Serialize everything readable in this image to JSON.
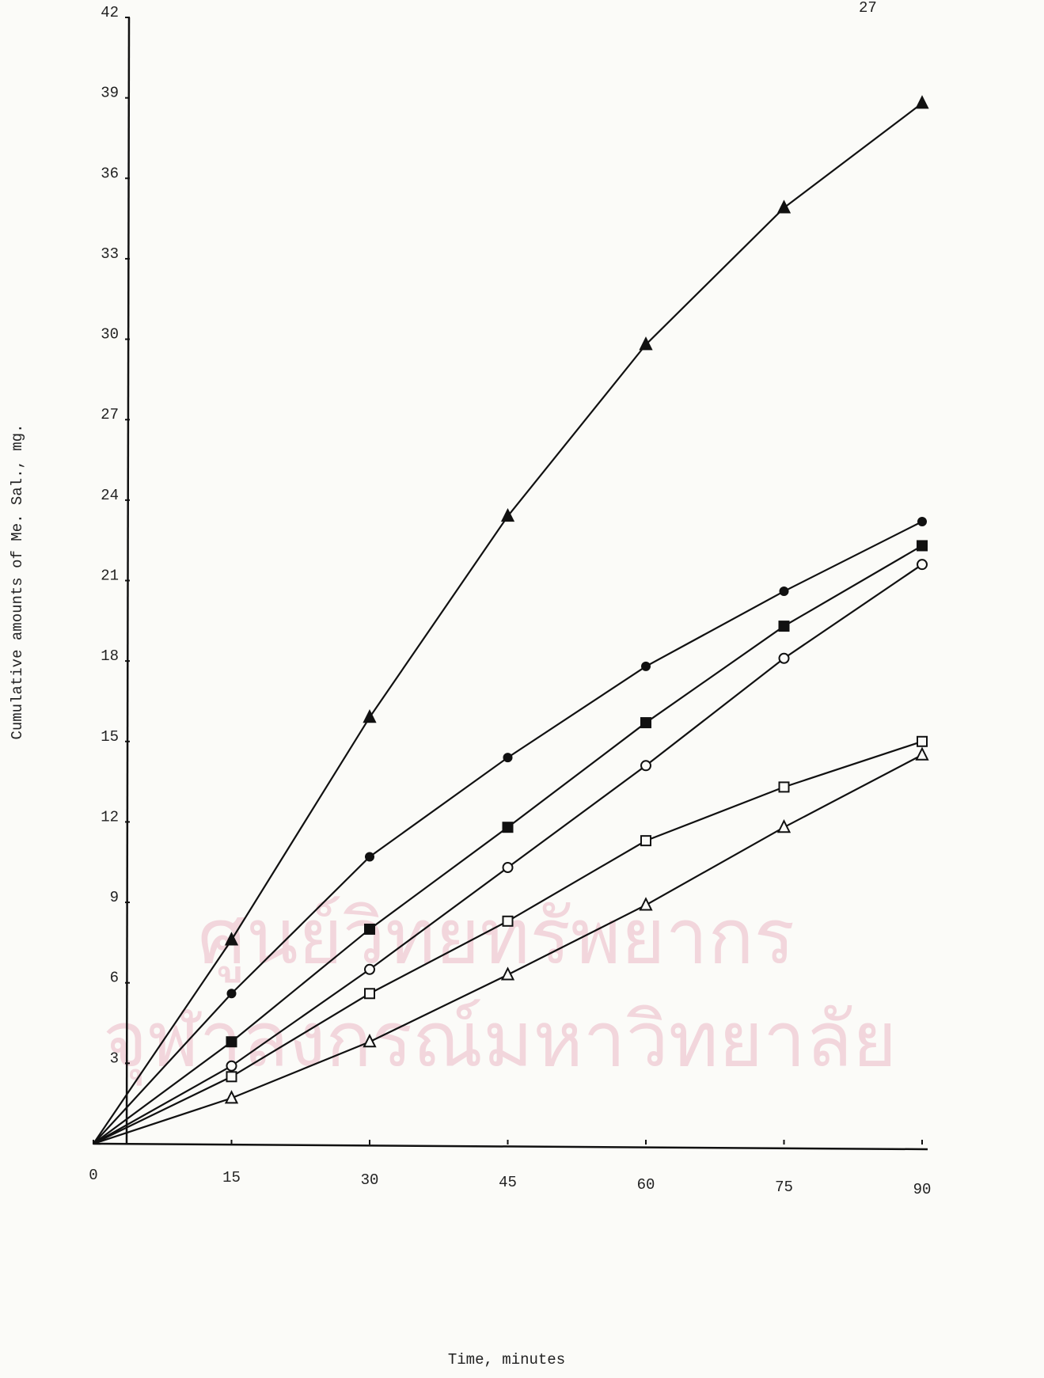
{
  "page_number": "27",
  "watermark": [
    "ศูนย์วิทยทรัพยากร",
    "จุฬาลงกรณ์มหาวิทยาลัย"
  ],
  "chart_data": {
    "type": "line",
    "x_label": "Time, minutes",
    "y_label": "Cumulative amounts of Me. Sal., mg.",
    "x": [
      0,
      15,
      30,
      45,
      60,
      75,
      90
    ],
    "series": [
      {
        "marker": "triangle-filled",
        "color": "#111111",
        "values": [
          0,
          7.6,
          15.9,
          23.4,
          29.8,
          34.9,
          38.8
        ]
      },
      {
        "marker": "circle-filled",
        "color": "#111111",
        "values": [
          0,
          5.6,
          10.7,
          14.4,
          17.8,
          20.6,
          23.2
        ]
      },
      {
        "marker": "square-filled",
        "color": "#111111",
        "values": [
          0,
          3.8,
          8.0,
          11.8,
          15.7,
          19.3,
          22.3
        ]
      },
      {
        "marker": "circle-open",
        "color": "#111111",
        "values": [
          0,
          2.9,
          6.5,
          10.3,
          14.1,
          18.1,
          21.6
        ]
      },
      {
        "marker": "square-open",
        "color": "#111111",
        "values": [
          0,
          2.5,
          5.6,
          8.3,
          11.3,
          13.3,
          15.0
        ]
      },
      {
        "marker": "triangle-open",
        "color": "#111111",
        "values": [
          0,
          1.7,
          3.8,
          6.3,
          8.9,
          11.8,
          14.5
        ]
      }
    ],
    "xlim": [
      0,
      90
    ],
    "ylim": [
      0,
      42
    ],
    "xticks": [
      0,
      15,
      30,
      45,
      60,
      75,
      90
    ],
    "yticks": [
      3,
      6,
      9,
      12,
      15,
      18,
      21,
      24,
      27,
      30,
      33,
      36,
      39,
      42
    ]
  }
}
